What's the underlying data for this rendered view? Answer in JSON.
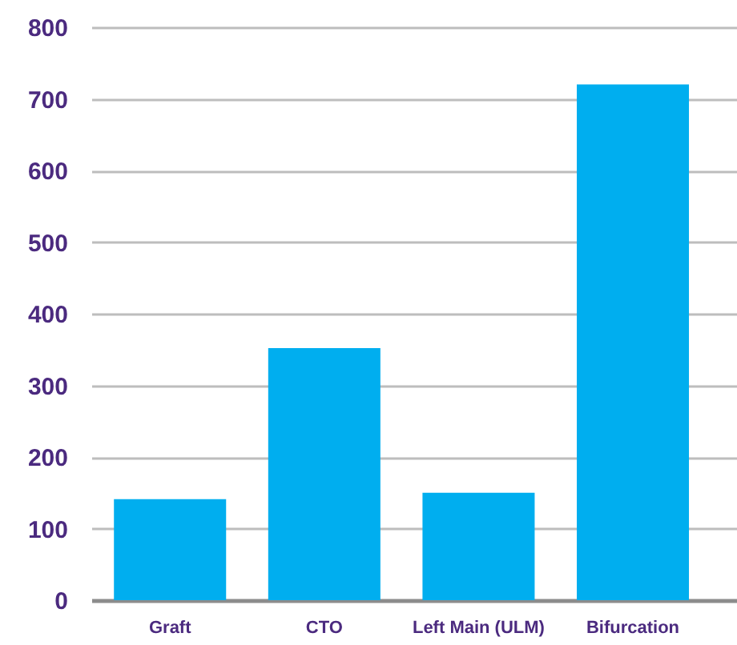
{
  "chart_data": {
    "type": "bar",
    "categories": [
      "Graft",
      "CTO",
      "Left Main (ULM)",
      "Bifurcation"
    ],
    "values": [
      141,
      352,
      150,
      720
    ],
    "color": "#00aeef",
    "ylim": [
      0,
      800
    ],
    "yticks": [
      0,
      100,
      200,
      300,
      400,
      500,
      600,
      700,
      800
    ],
    "grid": "y"
  }
}
